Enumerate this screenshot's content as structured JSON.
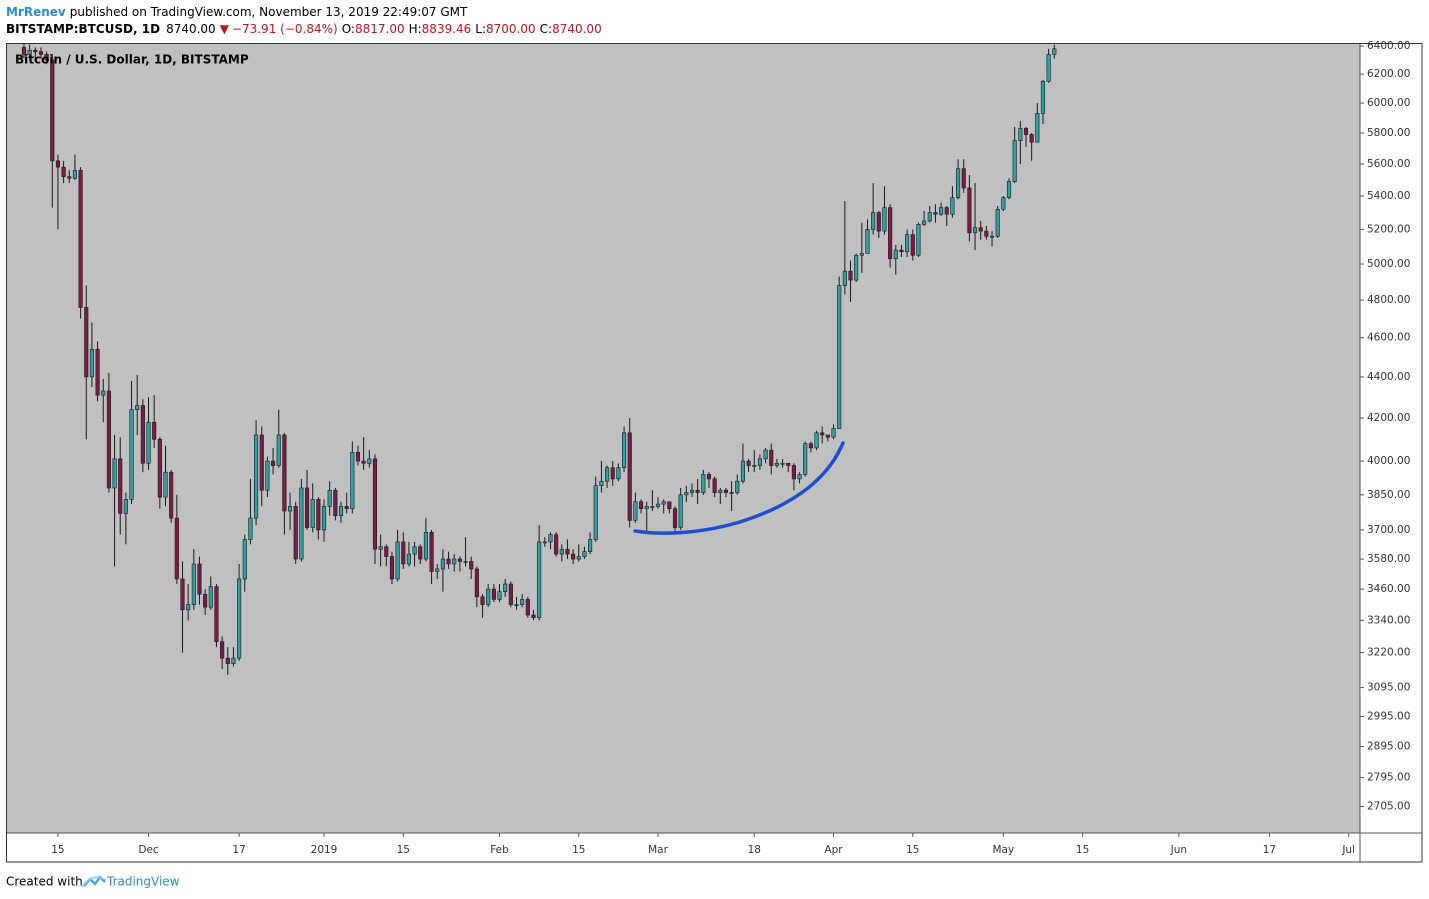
{
  "header": {
    "author": "MrRenev",
    "published": "published on TradingView.com, November 13, 2019 22:49:07 GMT",
    "symbol": "BITSTAMP:BTCUSD, 1D",
    "last": "8740.00",
    "change": "−73.91 (−0.84%)",
    "ohlc": [
      {
        "label": "O:",
        "value": "8817.00"
      },
      {
        "label": "H:",
        "value": "8839.46"
      },
      {
        "label": "L:",
        "value": "8700.00"
      },
      {
        "label": "C:",
        "value": "8740.00"
      }
    ]
  },
  "footer": {
    "created": "Created with",
    "brand": "TradingView"
  },
  "chart_data": {
    "type": "candlestick",
    "title": "Bitcoin / U.S. Dollar, 1D, BITSTAMP",
    "log_scale": true,
    "grid": false,
    "up_color": "#30a0a2",
    "down_color": "#7c1c46",
    "background": "#c0c0c0",
    "xlim": [
      "2018-11-06",
      "2019-07-03"
    ],
    "ylim": [
      2625,
      6415
    ],
    "xticks": [
      {
        "value": "2018-11-15",
        "label": "15"
      },
      {
        "value": "2018-12-01",
        "label": "Dec"
      },
      {
        "value": "2018-12-17",
        "label": "17"
      },
      {
        "value": "2019-01-01",
        "label": "2019"
      },
      {
        "value": "2019-01-15",
        "label": "15"
      },
      {
        "value": "2019-02-01",
        "label": "Feb"
      },
      {
        "value": "2019-02-15",
        "label": "15"
      },
      {
        "value": "2019-03-01",
        "label": "Mar"
      },
      {
        "value": "2019-03-18",
        "label": "18"
      },
      {
        "value": "2019-04-01",
        "label": "Apr"
      },
      {
        "value": "2019-04-15",
        "label": "15"
      },
      {
        "value": "2019-05-01",
        "label": "May"
      },
      {
        "value": "2019-05-15",
        "label": "15"
      },
      {
        "value": "2019-06-01",
        "label": "Jun"
      },
      {
        "value": "2019-06-17",
        "label": "17"
      },
      {
        "value": "2019-07-01",
        "label": "Jul"
      }
    ],
    "yticks": [
      {
        "value": 6400,
        "label": "6400.00"
      },
      {
        "value": 6200,
        "label": "6200.00"
      },
      {
        "value": 6000,
        "label": "6000.00"
      },
      {
        "value": 5800,
        "label": "5800.00"
      },
      {
        "value": 5600,
        "label": "5600.00"
      },
      {
        "value": 5400,
        "label": "5400.00"
      },
      {
        "value": 5200,
        "label": "5200.00"
      },
      {
        "value": 5000,
        "label": "5000.00"
      },
      {
        "value": 4800,
        "label": "4800.00"
      },
      {
        "value": 4600,
        "label": "4600.00"
      },
      {
        "value": 4400,
        "label": "4400.00"
      },
      {
        "value": 4200,
        "label": "4200.00"
      },
      {
        "value": 4000,
        "label": "4000.00"
      },
      {
        "value": 3850,
        "label": "3850.00"
      },
      {
        "value": 3700,
        "label": "3700.00"
      },
      {
        "value": 3580,
        "label": "3580.00"
      },
      {
        "value": 3460,
        "label": "3460.00"
      },
      {
        "value": 3340,
        "label": "3340.00"
      },
      {
        "value": 3220,
        "label": "3220.00"
      },
      {
        "value": 3095,
        "label": "3095.00"
      },
      {
        "value": 2995,
        "label": "2995.00"
      },
      {
        "value": 2895,
        "label": "2895.00"
      },
      {
        "value": 2795,
        "label": "2795.00"
      },
      {
        "value": 2705,
        "label": "2705.00"
      }
    ],
    "x": [
      "2018-11-09",
      "2018-11-10",
      "2018-11-11",
      "2018-11-12",
      "2018-11-13",
      "2018-11-14",
      "2018-11-15",
      "2018-11-16",
      "2018-11-17",
      "2018-11-18",
      "2018-11-19",
      "2018-11-20",
      "2018-11-21",
      "2018-11-22",
      "2018-11-23",
      "2018-11-24",
      "2018-11-25",
      "2018-11-26",
      "2018-11-27",
      "2018-11-28",
      "2018-11-29",
      "2018-11-30",
      "2018-12-01",
      "2018-12-02",
      "2018-12-03",
      "2018-12-04",
      "2018-12-05",
      "2018-12-06",
      "2018-12-07",
      "2018-12-08",
      "2018-12-09",
      "2018-12-10",
      "2018-12-11",
      "2018-12-12",
      "2018-12-13",
      "2018-12-14",
      "2018-12-15",
      "2018-12-16",
      "2018-12-17",
      "2018-12-18",
      "2018-12-19",
      "2018-12-20",
      "2018-12-21",
      "2018-12-22",
      "2018-12-23",
      "2018-12-24",
      "2018-12-25",
      "2018-12-26",
      "2018-12-27",
      "2018-12-28",
      "2018-12-29",
      "2018-12-30",
      "2018-12-31",
      "2019-01-01",
      "2019-01-02",
      "2019-01-03",
      "2019-01-04",
      "2019-01-05",
      "2019-01-06",
      "2019-01-07",
      "2019-01-08",
      "2019-01-09",
      "2019-01-10",
      "2019-01-11",
      "2019-01-12",
      "2019-01-13",
      "2019-01-14",
      "2019-01-15",
      "2019-01-16",
      "2019-01-17",
      "2019-01-18",
      "2019-01-19",
      "2019-01-20",
      "2019-01-21",
      "2019-01-22",
      "2019-01-23",
      "2019-01-24",
      "2019-01-25",
      "2019-01-26",
      "2019-01-27",
      "2019-01-28",
      "2019-01-29",
      "2019-01-30",
      "2019-01-31",
      "2019-02-01",
      "2019-02-02",
      "2019-02-03",
      "2019-02-04",
      "2019-02-05",
      "2019-02-06",
      "2019-02-07",
      "2019-02-08",
      "2019-02-09",
      "2019-02-10",
      "2019-02-11",
      "2019-02-12",
      "2019-02-13",
      "2019-02-14",
      "2019-02-15",
      "2019-02-16",
      "2019-02-17",
      "2019-02-18",
      "2019-02-19",
      "2019-02-20",
      "2019-02-21",
      "2019-02-22",
      "2019-02-23",
      "2019-02-24",
      "2019-02-25",
      "2019-02-26",
      "2019-02-27",
      "2019-02-28",
      "2019-03-01",
      "2019-03-02",
      "2019-03-03",
      "2019-03-04",
      "2019-03-05",
      "2019-03-06",
      "2019-03-07",
      "2019-03-08",
      "2019-03-09",
      "2019-03-10",
      "2019-03-11",
      "2019-03-12",
      "2019-03-13",
      "2019-03-14",
      "2019-03-15",
      "2019-03-16",
      "2019-03-17",
      "2019-03-18",
      "2019-03-19",
      "2019-03-20",
      "2019-03-21",
      "2019-03-22",
      "2019-03-23",
      "2019-03-24",
      "2019-03-25",
      "2019-03-26",
      "2019-03-27",
      "2019-03-28",
      "2019-03-29",
      "2019-03-30",
      "2019-03-31",
      "2019-04-01",
      "2019-04-02",
      "2019-04-03",
      "2019-04-04",
      "2019-04-05",
      "2019-04-06",
      "2019-04-07",
      "2019-04-08",
      "2019-04-09",
      "2019-04-10",
      "2019-04-11",
      "2019-04-12",
      "2019-04-13",
      "2019-04-14",
      "2019-04-15",
      "2019-04-16",
      "2019-04-17",
      "2019-04-18",
      "2019-04-19",
      "2019-04-20",
      "2019-04-21",
      "2019-04-22",
      "2019-04-23",
      "2019-04-24",
      "2019-04-25",
      "2019-04-26",
      "2019-04-27",
      "2019-04-28",
      "2019-04-29",
      "2019-04-30",
      "2019-05-01",
      "2019-05-02",
      "2019-05-03",
      "2019-05-04",
      "2019-05-05",
      "2019-05-06",
      "2019-05-07",
      "2019-05-08",
      "2019-05-09",
      "2019-05-10"
    ],
    "open": [
      6390,
      6340,
      6370,
      6360,
      6340,
      6300,
      5620,
      5580,
      5520,
      5510,
      5560,
      4760,
      4400,
      4540,
      4310,
      4330,
      3880,
      4010,
      3770,
      3830,
      4240,
      4260,
      3990,
      4180,
      4100,
      3840,
      3950,
      3750,
      3500,
      3380,
      3400,
      3560,
      3440,
      3390,
      3470,
      3260,
      3200,
      3180,
      3200,
      3500,
      3660,
      3750,
      4120,
      3870,
      4000,
      3980,
      4120,
      3780,
      3800,
      3580,
      3880,
      3710,
      3830,
      3700,
      3800,
      3870,
      3760,
      3800,
      3790,
      4040,
      4000,
      3990,
      4010,
      3620,
      3630,
      3590,
      3500,
      3650,
      3560,
      3600,
      3630,
      3580,
      3690,
      3530,
      3540,
      3580,
      3560,
      3580,
      3570,
      3570,
      3540,
      3430,
      3400,
      3460,
      3420,
      3450,
      3480,
      3400,
      3400,
      3420,
      3360,
      3350,
      3650,
      3650,
      3680,
      3600,
      3620,
      3600,
      3580,
      3590,
      3610,
      3660,
      3890,
      3910,
      3970,
      3920,
      3970,
      4130,
      3740,
      3820,
      3790,
      3800,
      3800,
      3810,
      3820,
      3790,
      3710,
      3850,
      3860,
      3870,
      3860,
      3940,
      3920,
      3860,
      3870,
      3860,
      3860,
      3910,
      4000,
      3980,
      3980,
      4010,
      4050,
      3980,
      3990,
      3990,
      3980,
      3920,
      3940,
      4080,
      4060,
      4130,
      4120,
      4110,
      4150,
      4880,
      4960,
      4910,
      5050,
      5060,
      5200,
      5300,
      5190,
      5330,
      5030,
      5080,
      5070,
      5170,
      5050,
      5230,
      5250,
      5300,
      5290,
      5330,
      5290,
      5390,
      5570,
      5450,
      5180,
      5210,
      5190,
      5160,
      5160,
      5320,
      5390,
      5490,
      5750,
      5830,
      5790,
      5740,
      5930,
      6150,
      6340
    ],
    "high": [
      6420,
      6410,
      6390,
      6390,
      6360,
      6340,
      5660,
      5620,
      5560,
      5660,
      5580,
      4880,
      4680,
      4580,
      4390,
      4420,
      4120,
      4110,
      3860,
      4380,
      4410,
      4290,
      4300,
      4310,
      4110,
      4070,
      3960,
      3850,
      3570,
      3480,
      3620,
      3590,
      3460,
      3510,
      3480,
      3280,
      3240,
      3240,
      3560,
      3680,
      3920,
      4190,
      4160,
      4020,
      4060,
      4240,
      4130,
      3860,
      3820,
      3920,
      3960,
      3900,
      3840,
      3830,
      3910,
      3880,
      3820,
      3860,
      4090,
      4070,
      4110,
      4050,
      4030,
      3680,
      3640,
      3610,
      3700,
      3690,
      3650,
      3650,
      3640,
      3750,
      3700,
      3560,
      3620,
      3610,
      3600,
      3590,
      3670,
      3590,
      3550,
      3440,
      3480,
      3480,
      3480,
      3500,
      3490,
      3430,
      3440,
      3430,
      3380,
      3720,
      3670,
      3690,
      3690,
      3640,
      3660,
      3620,
      3640,
      3630,
      3690,
      3930,
      4000,
      3980,
      4000,
      3990,
      4160,
      4200,
      3860,
      3830,
      3820,
      3870,
      3840,
      3830,
      3820,
      3800,
      3880,
      3890,
      3900,
      3920,
      3960,
      3950,
      3930,
      3880,
      3880,
      3910,
      3940,
      4080,
      4010,
      4050,
      4030,
      4060,
      4080,
      4010,
      4010,
      3990,
      3990,
      3950,
      4090,
      4090,
      4140,
      4160,
      4120,
      4170,
      4930,
      5370,
      5020,
      5060,
      5240,
      5260,
      5480,
      5310,
      5460,
      5350,
      5110,
      5110,
      5200,
      5200,
      5240,
      5310,
      5340,
      5350,
      5360,
      5340,
      5460,
      5630,
      5630,
      5530,
      5480,
      5250,
      5220,
      5190,
      5340,
      5400,
      5510,
      5840,
      5880,
      5840,
      5800,
      6000,
      6160,
      6380,
      6410
    ],
    "low": [
      6310,
      6330,
      6300,
      6310,
      6270,
      5330,
      5200,
      5480,
      5480,
      5500,
      4700,
      4100,
      4350,
      4280,
      4180,
      3860,
      3550,
      3680,
      3640,
      3810,
      4120,
      3950,
      3960,
      4060,
      3790,
      3800,
      3730,
      3480,
      3220,
      3340,
      3380,
      3400,
      3360,
      3380,
      3240,
      3160,
      3140,
      3170,
      3190,
      3450,
      3640,
      3720,
      3800,
      3840,
      3940,
      3970,
      3680,
      3700,
      3560,
      3570,
      3700,
      3690,
      3660,
      3650,
      3760,
      3740,
      3730,
      3770,
      3770,
      3980,
      3960,
      3970,
      3560,
      3550,
      3550,
      3480,
      3490,
      3540,
      3550,
      3550,
      3560,
      3570,
      3480,
      3500,
      3450,
      3540,
      3530,
      3530,
      3550,
      3500,
      3390,
      3350,
      3390,
      3410,
      3410,
      3430,
      3390,
      3380,
      3390,
      3350,
      3340,
      3340,
      3630,
      3620,
      3590,
      3570,
      3580,
      3560,
      3570,
      3580,
      3600,
      3650,
      3860,
      3880,
      3890,
      3910,
      3950,
      3710,
      3730,
      3770,
      3690,
      3780,
      3790,
      3770,
      3770,
      3690,
      3700,
      3820,
      3840,
      3810,
      3850,
      3880,
      3840,
      3810,
      3840,
      3780,
      3850,
      3900,
      3950,
      3950,
      3960,
      3990,
      3940,
      3970,
      3970,
      3950,
      3870,
      3900,
      3930,
      4040,
      4050,
      4080,
      4090,
      4100,
      4150,
      4830,
      4790,
      4900,
      4950,
      5060,
      5170,
      5150,
      5170,
      4980,
      4940,
      5040,
      5040,
      5020,
      5040,
      5220,
      5240,
      5240,
      5280,
      5220,
      5270,
      5380,
      5420,
      5130,
      5080,
      5140,
      5140,
      5100,
      5150,
      5310,
      5380,
      5480,
      5600,
      5710,
      5620,
      5740,
      5860,
      6140,
      6310
    ],
    "close": [
      6340,
      6370,
      6360,
      6340,
      6300,
      5620,
      5580,
      5520,
      5510,
      5560,
      4760,
      4400,
      4540,
      4310,
      4330,
      3880,
      4010,
      3770,
      3830,
      4240,
      4260,
      3990,
      4180,
      4100,
      3840,
      3950,
      3750,
      3500,
      3380,
      3400,
      3560,
      3440,
      3390,
      3470,
      3260,
      3200,
      3180,
      3200,
      3500,
      3660,
      3750,
      4120,
      3870,
      4000,
      3980,
      4120,
      3780,
      3800,
      3580,
      3880,
      3710,
      3830,
      3700,
      3800,
      3870,
      3760,
      3800,
      3790,
      4040,
      4000,
      3990,
      4010,
      3620,
      3630,
      3590,
      3500,
      3650,
      3560,
      3600,
      3630,
      3580,
      3690,
      3530,
      3540,
      3580,
      3560,
      3580,
      3570,
      3570,
      3540,
      3430,
      3400,
      3460,
      3420,
      3450,
      3480,
      3400,
      3400,
      3420,
      3360,
      3350,
      3650,
      3650,
      3680,
      3600,
      3620,
      3600,
      3580,
      3590,
      3610,
      3660,
      3890,
      3910,
      3970,
      3920,
      3970,
      4130,
      3740,
      3820,
      3790,
      3800,
      3800,
      3810,
      3820,
      3790,
      3710,
      3850,
      3860,
      3870,
      3860,
      3940,
      3920,
      3860,
      3870,
      3860,
      3860,
      3910,
      4000,
      3980,
      3980,
      4010,
      4050,
      3980,
      3990,
      3990,
      3980,
      3920,
      3940,
      4080,
      4060,
      4130,
      4120,
      4110,
      4150,
      4880,
      4960,
      4910,
      5050,
      5060,
      5200,
      5300,
      5190,
      5330,
      5030,
      5080,
      5070,
      5170,
      5050,
      5230,
      5250,
      5300,
      5290,
      5330,
      5290,
      5390,
      5570,
      5450,
      5180,
      5210,
      5190,
      5160,
      5160,
      5320,
      5390,
      5490,
      5750,
      5830,
      5790,
      5740,
      5930,
      6150,
      6340,
      6380
    ]
  }
}
